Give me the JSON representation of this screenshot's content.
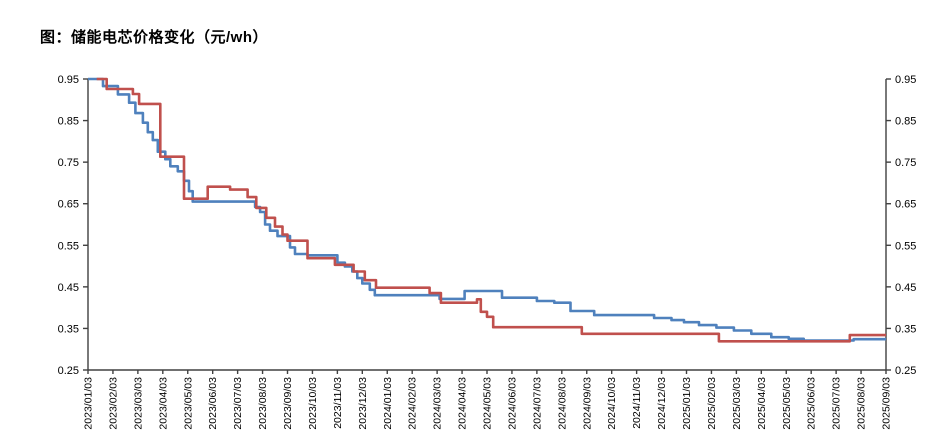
{
  "title": "图：储能电芯价格变化（元/wh）",
  "colors": {
    "blue_series": "#4F81BD",
    "red_series": "#C0504D",
    "axis": "#404040",
    "tick_text": "#000000",
    "background": "#ffffff"
  },
  "chart_data": {
    "type": "line",
    "subtype": "step-after",
    "title": "图：储能电芯价格变化（元/wh）",
    "xlabel": "",
    "ylabel": "",
    "ylim": [
      0.25,
      0.95
    ],
    "y_ticks": [
      "0.95",
      "0.85",
      "0.75",
      "0.65",
      "0.55",
      "0.45",
      "0.35",
      "0.25"
    ],
    "y_axis_sides": "both",
    "grid": false,
    "legend": "none",
    "x_unit": "month index from 2023/01/03 (fractional = intra-month step date)",
    "x_tick_labels": [
      "2023/01/03",
      "2023/02/03",
      "2023/03/03",
      "2023/04/03",
      "2023/05/03",
      "2023/06/03",
      "2023/07/03",
      "2023/08/03",
      "2023/09/03",
      "2023/10/03",
      "2023/11/03",
      "2023/12/03",
      "2024/01/03",
      "2024/02/03",
      "2024/03/03",
      "2024/04/03",
      "2024/05/03",
      "2024/06/03",
      "2024/07/03",
      "2024/08/03",
      "2024/09/03",
      "2024/10/03",
      "2024/11/03",
      "2024/12/03",
      "2025/01/03",
      "2025/02/03",
      "2025/03/03",
      "2025/04/03",
      "2025/05/03",
      "2025/06/03",
      "2025/07/03",
      "2025/08/03",
      "2025/09/03"
    ],
    "series": [
      {
        "name": "blue-price-line",
        "color": "#4F81BD",
        "points": [
          [
            0,
            0.95
          ],
          [
            0.6,
            0.933
          ],
          [
            1.2,
            0.913
          ],
          [
            1.65,
            0.893
          ],
          [
            1.9,
            0.868
          ],
          [
            2.2,
            0.845
          ],
          [
            2.4,
            0.822
          ],
          [
            2.6,
            0.803
          ],
          [
            2.8,
            0.775
          ],
          [
            3.1,
            0.757
          ],
          [
            3.3,
            0.74
          ],
          [
            3.6,
            0.728
          ],
          [
            3.85,
            0.705
          ],
          [
            4.05,
            0.68
          ],
          [
            4.2,
            0.655
          ],
          [
            6.7,
            0.642
          ],
          [
            6.9,
            0.63
          ],
          [
            7.1,
            0.6
          ],
          [
            7.3,
            0.585
          ],
          [
            7.6,
            0.572
          ],
          [
            8.1,
            0.545
          ],
          [
            8.3,
            0.529
          ],
          [
            8.8,
            0.526
          ],
          [
            10.0,
            0.508
          ],
          [
            10.3,
            0.499
          ],
          [
            10.6,
            0.487
          ],
          [
            10.8,
            0.471
          ],
          [
            11.0,
            0.458
          ],
          [
            11.3,
            0.443
          ],
          [
            11.5,
            0.43
          ],
          [
            14.1,
            0.421
          ],
          [
            15.1,
            0.44
          ],
          [
            16.6,
            0.424
          ],
          [
            18.0,
            0.416
          ],
          [
            18.7,
            0.412
          ],
          [
            19.35,
            0.392
          ],
          [
            20.3,
            0.382
          ],
          [
            22.7,
            0.375
          ],
          [
            23.4,
            0.37
          ],
          [
            23.9,
            0.365
          ],
          [
            24.5,
            0.358
          ],
          [
            25.2,
            0.352
          ],
          [
            25.9,
            0.345
          ],
          [
            26.6,
            0.337
          ],
          [
            27.4,
            0.329
          ],
          [
            28.1,
            0.325
          ],
          [
            28.7,
            0.321
          ],
          [
            30.7,
            0.324
          ],
          [
            32,
            0.324
          ]
        ]
      },
      {
        "name": "red-price-line",
        "color": "#C0504D",
        "points": [
          [
            0.35,
            0.95
          ],
          [
            0.75,
            0.926
          ],
          [
            1.8,
            0.914
          ],
          [
            2.05,
            0.89
          ],
          [
            2.9,
            0.763
          ],
          [
            3.85,
            0.662
          ],
          [
            4.8,
            0.691
          ],
          [
            5.7,
            0.684
          ],
          [
            6.4,
            0.666
          ],
          [
            6.75,
            0.64
          ],
          [
            7.15,
            0.616
          ],
          [
            7.5,
            0.595
          ],
          [
            7.8,
            0.576
          ],
          [
            8.0,
            0.561
          ],
          [
            8.8,
            0.519
          ],
          [
            9.9,
            0.503
          ],
          [
            10.65,
            0.487
          ],
          [
            11.1,
            0.466
          ],
          [
            11.55,
            0.448
          ],
          [
            13.7,
            0.435
          ],
          [
            14.15,
            0.412
          ],
          [
            15.6,
            0.42
          ],
          [
            15.75,
            0.39
          ],
          [
            16.0,
            0.378
          ],
          [
            16.25,
            0.353
          ],
          [
            19.8,
            0.337
          ],
          [
            25.3,
            0.319
          ],
          [
            30.55,
            0.334
          ],
          [
            32,
            0.334
          ]
        ]
      }
    ]
  }
}
